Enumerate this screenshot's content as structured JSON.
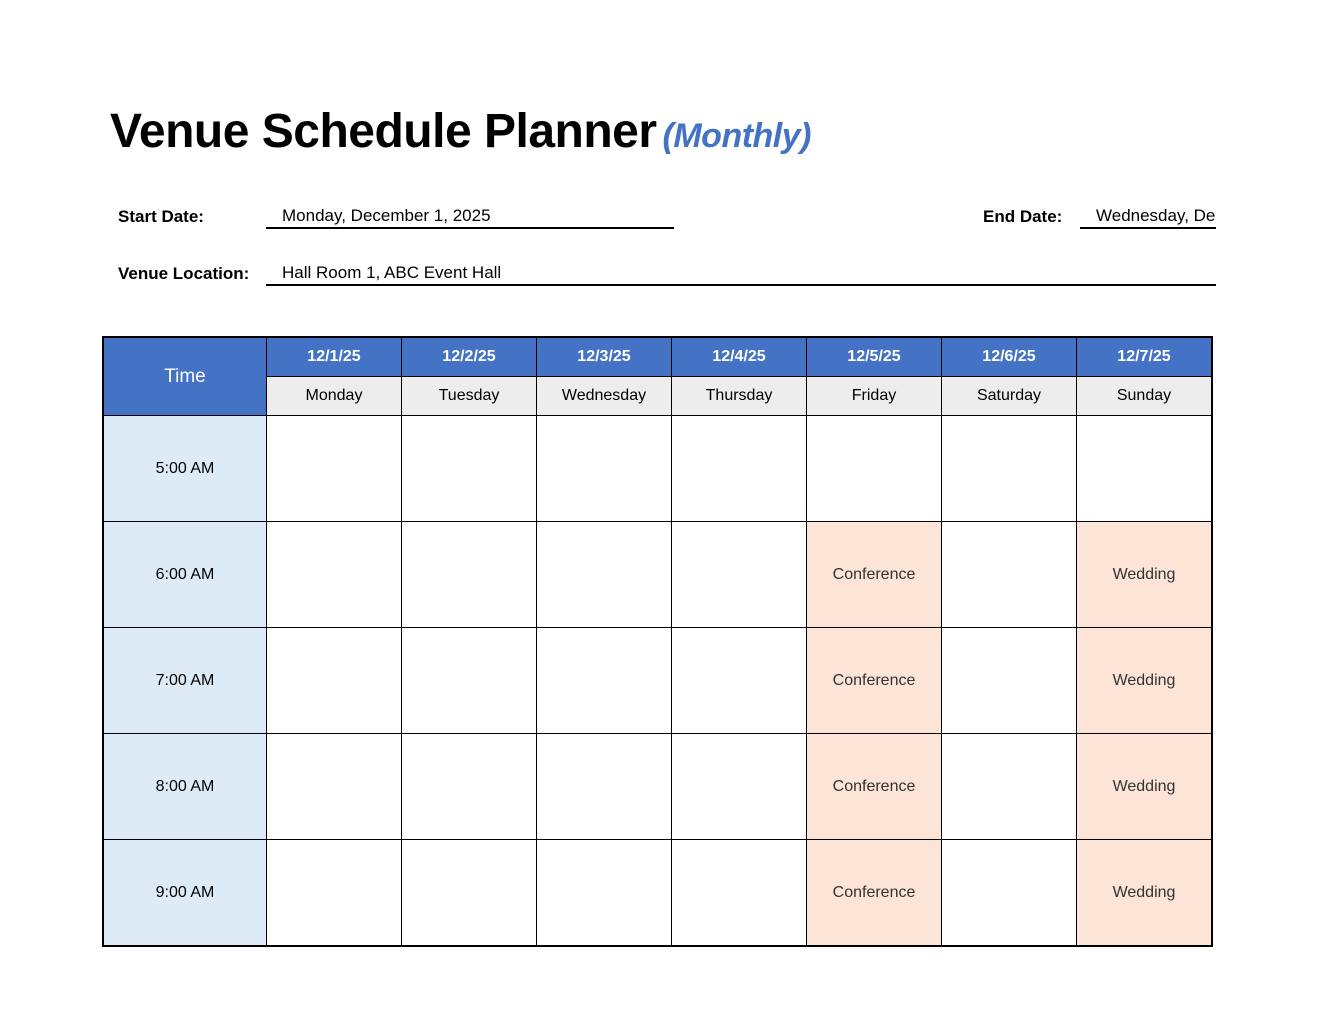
{
  "title": "Venue Schedule Planner",
  "subtitle": "(Monthly)",
  "start_date": {
    "label": "Start Date:",
    "value": "Monday, December 1, 2025"
  },
  "end_date": {
    "label": "End Date:",
    "value": "Wednesday, De"
  },
  "venue": {
    "label": "Venue Location:",
    "value": "Hall Room 1, ABC Event Hall"
  },
  "colors": {
    "header": "#4472C4",
    "time_bg": "#DDEBF7",
    "day_bg": "#EDEDED",
    "event_bg": "#FCE4D6"
  },
  "schedule": {
    "time_header": "Time",
    "columns": [
      {
        "date": "12/1/25",
        "day": "Monday"
      },
      {
        "date": "12/2/25",
        "day": "Tuesday"
      },
      {
        "date": "12/3/25",
        "day": "Wednesday"
      },
      {
        "date": "12/4/25",
        "day": "Thursday"
      },
      {
        "date": "12/5/25",
        "day": "Friday"
      },
      {
        "date": "12/6/25",
        "day": "Saturday"
      },
      {
        "date": "12/7/25",
        "day": "Sunday"
      }
    ],
    "rows": [
      {
        "time": "5:00 AM",
        "cells": [
          "",
          "",
          "",
          "",
          "",
          "",
          ""
        ]
      },
      {
        "time": "6:00 AM",
        "cells": [
          "",
          "",
          "",
          "",
          "Conference",
          "",
          "Wedding"
        ]
      },
      {
        "time": "7:00 AM",
        "cells": [
          "",
          "",
          "",
          "",
          "Conference",
          "",
          "Wedding"
        ]
      },
      {
        "time": "8:00 AM",
        "cells": [
          "",
          "",
          "",
          "",
          "Conference",
          "",
          "Wedding"
        ]
      },
      {
        "time": "9:00 AM",
        "cells": [
          "",
          "",
          "",
          "",
          "Conference",
          "",
          "Wedding"
        ]
      }
    ]
  }
}
